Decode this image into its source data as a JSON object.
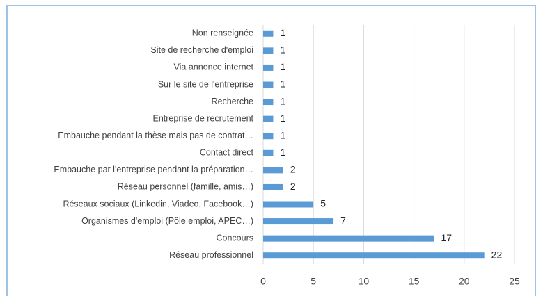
{
  "chart_data": {
    "type": "bar",
    "orientation": "horizontal",
    "categories": [
      "Non renseignée",
      "Site de recherche d'emploi",
      "Via annonce internet",
      "Sur le site de l'entreprise",
      "Recherche",
      "Entreprise de recrutement",
      "Embauche pendant la thèse mais pas de contrat…",
      "Contact direct",
      "Embauche par l'entreprise pendant la préparation…",
      "Réseau personnel (famille, amis…)",
      "Réseaux sociaux (Linkedin, Viadeo, Facebook…)",
      "Organismes d'emploi (Pôle emploi, APEC…)",
      "Concours",
      "Réseau professionnel"
    ],
    "values": [
      1,
      1,
      1,
      1,
      1,
      1,
      1,
      1,
      2,
      2,
      5,
      7,
      17,
      22
    ],
    "color": "#5b9bd5",
    "xlim": [
      0,
      25
    ],
    "xticks": [
      0,
      5,
      10,
      15,
      20,
      25
    ],
    "grid": true
  }
}
